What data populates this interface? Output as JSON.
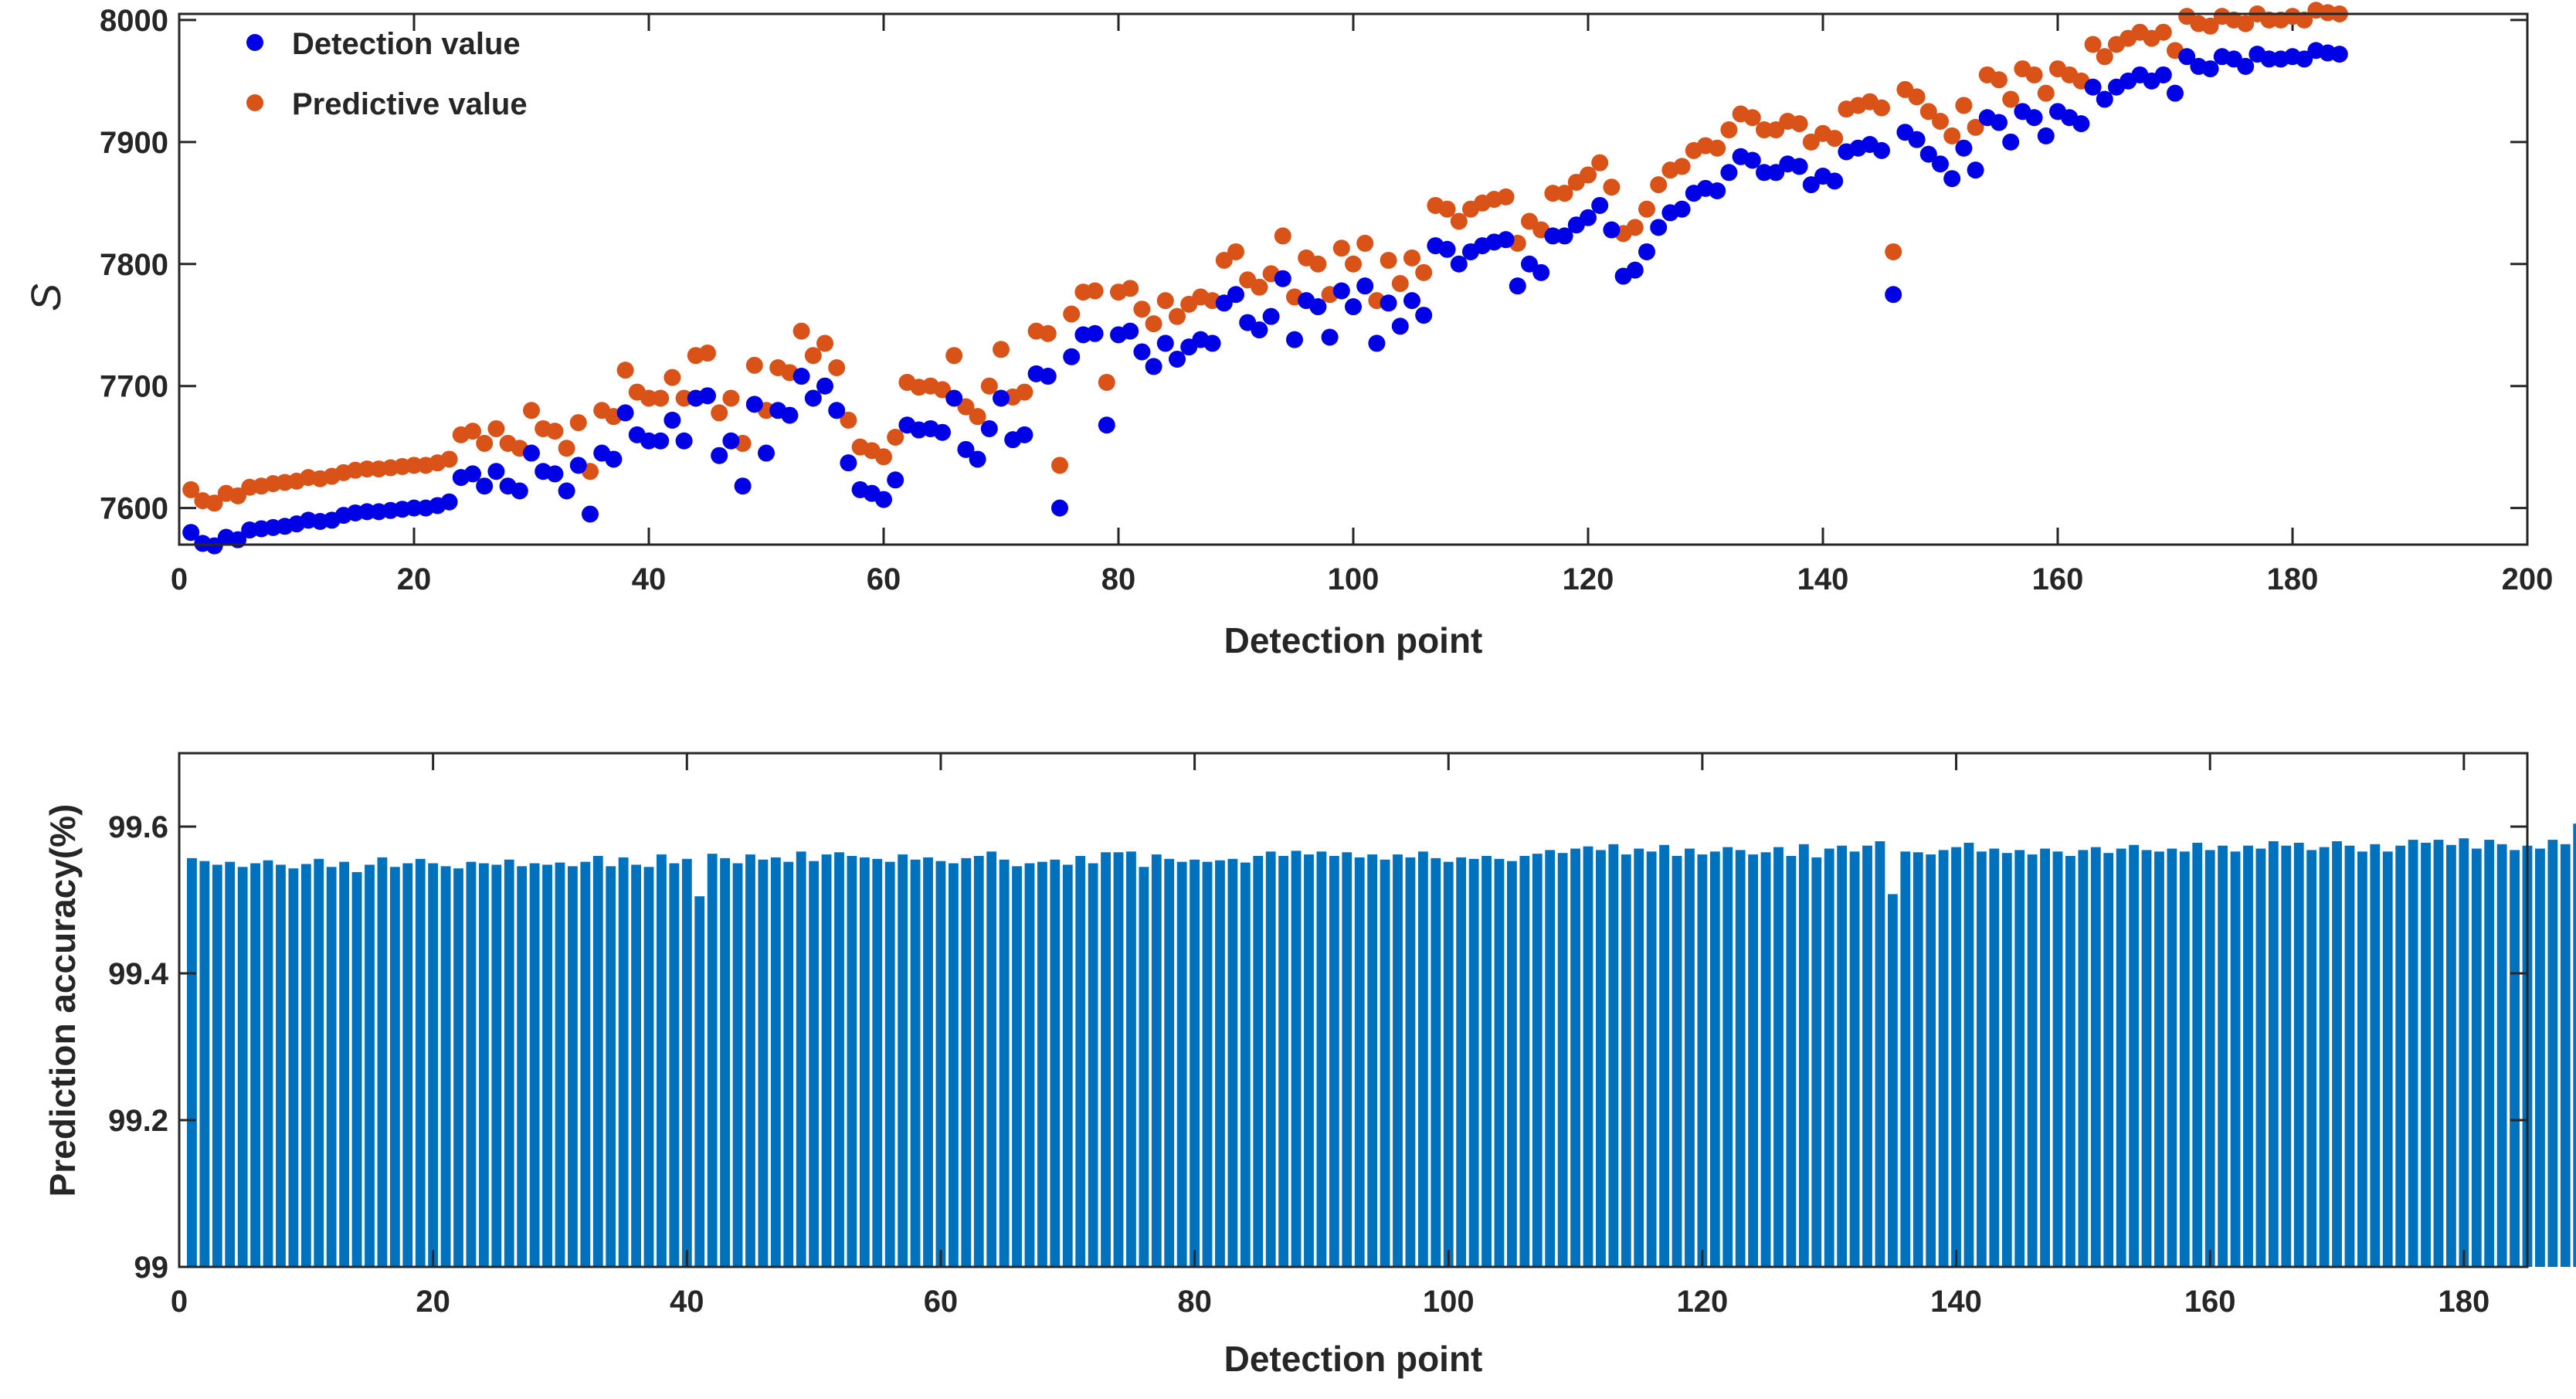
{
  "chart_data": [
    {
      "type": "scatter",
      "xlabel": "Detection point",
      "ylabel": "S",
      "xlim": [
        0,
        200
      ],
      "ylim": [
        7570,
        8005
      ],
      "xticks": [
        0,
        20,
        40,
        60,
        80,
        100,
        120,
        140,
        160,
        180,
        200
      ],
      "yticks": [
        7600,
        7700,
        7800,
        7900,
        8000
      ],
      "legend_position": "top-left",
      "series": [
        {
          "name": "Detection value",
          "color": "#0000e6",
          "x": [
            1,
            2,
            3,
            4,
            5,
            6,
            7,
            8,
            9,
            10,
            11,
            12,
            13,
            14,
            15,
            16,
            17,
            18,
            19,
            20,
            21,
            22,
            23,
            24,
            25,
            26,
            27,
            28,
            29,
            30,
            31,
            32,
            33,
            34,
            35,
            36,
            37,
            38,
            39,
            40,
            41,
            42,
            43,
            44,
            45,
            46,
            47,
            48,
            49,
            50,
            51,
            52,
            53,
            54,
            55,
            56,
            57,
            58,
            59,
            60,
            61,
            62,
            63,
            64,
            65,
            66,
            67,
            68,
            69,
            70,
            71,
            72,
            73,
            74,
            75,
            76,
            77,
            78,
            79,
            80,
            81,
            82,
            83,
            84,
            85,
            86,
            87,
            88,
            89,
            90,
            91,
            92,
            93,
            94,
            95,
            96,
            97,
            98,
            99,
            100,
            101,
            102,
            103,
            104,
            105,
            106,
            107,
            108,
            109,
            110,
            111,
            112,
            113,
            114,
            115,
            116,
            117,
            118,
            119,
            120,
            121,
            122,
            123,
            124,
            125,
            126,
            127,
            128,
            129,
            130,
            131,
            132,
            133,
            134,
            135,
            136,
            137,
            138,
            139,
            140,
            141,
            142,
            143,
            144,
            145,
            146,
            147,
            148,
            149,
            150,
            151,
            152,
            153,
            154,
            155,
            156,
            157,
            158,
            159,
            160,
            161,
            162,
            163,
            164,
            165,
            166,
            167,
            168,
            169,
            170,
            171,
            172,
            173,
            174,
            175,
            176,
            177,
            178,
            179,
            180,
            181,
            182,
            183,
            184
          ],
          "y": [
            7580,
            7571,
            7569,
            7576,
            7574,
            7582,
            7583,
            7584,
            7585,
            7587,
            7590,
            7589,
            7590,
            7594,
            7596,
            7597,
            7597,
            7598,
            7599,
            7600,
            7600,
            7602,
            7605,
            7625,
            7628,
            7618,
            7630,
            7618,
            7614,
            7645,
            7630,
            7628,
            7614,
            7635,
            7595,
            7645,
            7640,
            7678,
            7660,
            7655,
            7655,
            7672,
            7655,
            7690,
            7692,
            7643,
            7655,
            7618,
            7685,
            7645,
            7680,
            7676,
            7708,
            7690,
            7700,
            7680,
            7637,
            7615,
            7612,
            7607,
            7623,
            7668,
            7664,
            7665,
            7662,
            7690,
            7648,
            7640,
            7665,
            7690,
            7656,
            7660,
            7710,
            7708,
            7600,
            7724,
            7742,
            7743,
            7668,
            7742,
            7745,
            7728,
            7716,
            7735,
            7722,
            7732,
            7738,
            7735,
            7768,
            7775,
            7752,
            7746,
            7757,
            7788,
            7738,
            7770,
            7765,
            7740,
            7778,
            7765,
            7782,
            7735,
            7768,
            7749,
            7770,
            7758,
            7815,
            7812,
            7800,
            7810,
            7815,
            7818,
            7820,
            7782,
            7800,
            7793,
            7823,
            7823,
            7832,
            7838,
            7848,
            7828,
            7790,
            7795,
            7810,
            7830,
            7842,
            7845,
            7858,
            7862,
            7860,
            7875,
            7888,
            7885,
            7875,
            7875,
            7882,
            7880,
            7865,
            7872,
            7868,
            7892,
            7895,
            7898,
            7893,
            7775,
            7908,
            7902,
            7890,
            7882,
            7870,
            7895,
            7877,
            7920,
            7916,
            7900,
            7925,
            7920,
            7905,
            7925,
            7920,
            7915,
            7945,
            7935,
            7945,
            7950,
            7955,
            7950,
            7955,
            7940,
            7970,
            7962,
            7960,
            7970,
            7968,
            7962,
            7972,
            7968,
            7968,
            7970,
            7968,
            7975,
            7973,
            7972
          ]
        },
        {
          "name": "Predictive value",
          "color": "#d95319",
          "x": [
            1,
            2,
            3,
            4,
            5,
            6,
            7,
            8,
            9,
            10,
            11,
            12,
            13,
            14,
            15,
            16,
            17,
            18,
            19,
            20,
            21,
            22,
            23,
            24,
            25,
            26,
            27,
            28,
            29,
            30,
            31,
            32,
            33,
            34,
            35,
            36,
            37,
            38,
            39,
            40,
            41,
            42,
            43,
            44,
            45,
            46,
            47,
            48,
            49,
            50,
            51,
            52,
            53,
            54,
            55,
            56,
            57,
            58,
            59,
            60,
            61,
            62,
            63,
            64,
            65,
            66,
            67,
            68,
            69,
            70,
            71,
            72,
            73,
            74,
            75,
            76,
            77,
            78,
            79,
            80,
            81,
            82,
            83,
            84,
            85,
            86,
            87,
            88,
            89,
            90,
            91,
            92,
            93,
            94,
            95,
            96,
            97,
            98,
            99,
            100,
            101,
            102,
            103,
            104,
            105,
            106,
            107,
            108,
            109,
            110,
            111,
            112,
            113,
            114,
            115,
            116,
            117,
            118,
            119,
            120,
            121,
            122,
            123,
            124,
            125,
            126,
            127,
            128,
            129,
            130,
            131,
            132,
            133,
            134,
            135,
            136,
            137,
            138,
            139,
            140,
            141,
            142,
            143,
            144,
            145,
            146,
            147,
            148,
            149,
            150,
            151,
            152,
            153,
            154,
            155,
            156,
            157,
            158,
            159,
            160,
            161,
            162,
            163,
            164,
            165,
            166,
            167,
            168,
            169,
            170,
            171,
            172,
            173,
            174,
            175,
            176,
            177,
            178,
            179,
            180,
            181,
            182,
            183,
            184
          ],
          "y": [
            7615,
            7606,
            7604,
            7612,
            7610,
            7617,
            7618,
            7620,
            7621,
            7622,
            7625,
            7624,
            7626,
            7629,
            7631,
            7632,
            7632,
            7633,
            7634,
            7635,
            7635,
            7637,
            7640,
            7660,
            7663,
            7653,
            7665,
            7653,
            7649,
            7680,
            7665,
            7663,
            7649,
            7670,
            7630,
            7680,
            7675,
            7713,
            7695,
            7690,
            7690,
            7707,
            7690,
            7725,
            7727,
            7678,
            7690,
            7653,
            7717,
            7680,
            7715,
            7711,
            7745,
            7725,
            7735,
            7715,
            7672,
            7650,
            7647,
            7642,
            7658,
            7703,
            7699,
            7700,
            7697,
            7725,
            7683,
            7675,
            7700,
            7730,
            7691,
            7695,
            7745,
            7743,
            7635,
            7759,
            7777,
            7778,
            7703,
            7777,
            7780,
            7763,
            7751,
            7770,
            7757,
            7767,
            7773,
            7770,
            7803,
            7810,
            7787,
            7781,
            7792,
            7823,
            7773,
            7805,
            7800,
            7775,
            7813,
            7800,
            7817,
            7770,
            7803,
            7784,
            7805,
            7793,
            7848,
            7845,
            7835,
            7845,
            7850,
            7853,
            7855,
            7817,
            7835,
            7828,
            7858,
            7858,
            7867,
            7873,
            7883,
            7863,
            7825,
            7830,
            7845,
            7865,
            7877,
            7880,
            7893,
            7897,
            7895,
            7910,
            7923,
            7920,
            7910,
            7910,
            7917,
            7915,
            7900,
            7907,
            7903,
            7927,
            7930,
            7933,
            7928,
            7810,
            7943,
            7937,
            7925,
            7917,
            7905,
            7930,
            7912,
            7955,
            7951,
            7935,
            7960,
            7955,
            7940,
            7960,
            7955,
            7950,
            7980,
            7970,
            7980,
            7985,
            7990,
            7985,
            7990,
            7975,
            8003,
            7997,
            7995,
            8003,
            8000,
            7997,
            8005,
            8000,
            8000,
            8003,
            8000,
            8008,
            8006,
            8005
          ]
        }
      ]
    },
    {
      "type": "bar",
      "xlabel": "Detection point",
      "ylabel": "Prediction accuracy(%)",
      "xlim": [
        0,
        185
      ],
      "ylim": [
        99,
        99.7
      ],
      "xticks": [
        0,
        20,
        40,
        60,
        80,
        100,
        120,
        140,
        160,
        180
      ],
      "yticks": [
        99,
        99.2,
        99.4,
        99.6
      ],
      "ytick_labels": [
        "99",
        "99.2",
        "99.4",
        "99.6"
      ],
      "color": "#0072bd",
      "series": [
        {
          "name": "Prediction accuracy",
          "values": [
            99.557,
            99.553,
            99.548,
            99.552,
            99.545,
            99.55,
            99.554,
            99.548,
            99.543,
            99.549,
            99.556,
            99.545,
            99.552,
            99.538,
            99.548,
            99.558,
            99.545,
            99.55,
            99.556,
            99.55,
            99.546,
            99.543,
            99.552,
            99.55,
            99.548,
            99.555,
            99.546,
            99.55,
            99.548,
            99.551,
            99.546,
            99.552,
            99.56,
            99.546,
            99.558,
            99.548,
            99.545,
            99.562,
            99.55,
            99.556,
            99.505,
            99.563,
            99.557,
            99.55,
            99.562,
            99.555,
            99.558,
            99.552,
            99.566,
            99.553,
            99.562,
            99.565,
            99.56,
            99.558,
            99.556,
            99.552,
            99.562,
            99.555,
            99.558,
            99.553,
            99.55,
            99.557,
            99.56,
            99.566,
            99.555,
            99.546,
            99.55,
            99.552,
            99.555,
            99.548,
            99.56,
            99.55,
            99.565,
            99.565,
            99.566,
            99.545,
            99.562,
            99.556,
            99.552,
            99.555,
            99.552,
            99.554,
            99.556,
            99.551,
            99.56,
            99.566,
            99.56,
            99.567,
            99.562,
            99.566,
            99.56,
            99.565,
            99.558,
            99.562,
            99.555,
            99.562,
            99.558,
            99.566,
            99.557,
            99.552,
            99.558,
            99.556,
            99.56,
            99.556,
            99.553,
            99.56,
            99.563,
            99.568,
            99.564,
            99.57,
            99.573,
            99.568,
            99.576,
            99.562,
            99.57,
            99.566,
            99.575,
            99.56,
            99.57,
            99.562,
            99.566,
            99.572,
            99.568,
            99.562,
            99.565,
            99.572,
            99.56,
            99.576,
            99.558,
            99.57,
            99.574,
            99.566,
            99.574,
            99.58,
            99.508,
            99.566,
            99.565,
            99.562,
            99.568,
            99.572,
            99.578,
            99.566,
            99.57,
            99.564,
            99.568,
            99.562,
            99.57,
            99.566,
            99.56,
            99.568,
            99.572,
            99.564,
            99.57,
            99.575,
            99.568,
            99.566,
            99.57,
            99.566,
            99.578,
            99.568,
            99.574,
            99.566,
            99.574,
            99.57,
            99.58,
            99.574,
            99.578,
            99.568,
            99.572,
            99.58,
            99.574,
            99.566,
            99.576,
            99.566,
            99.574,
            99.582,
            99.578,
            99.582,
            99.575,
            99.584,
            99.57,
            99.582,
            99.576,
            99.568,
            99.574,
            99.57,
            99.582,
            99.576,
            99.604,
            99.58,
            99.576
          ]
        }
      ]
    }
  ]
}
